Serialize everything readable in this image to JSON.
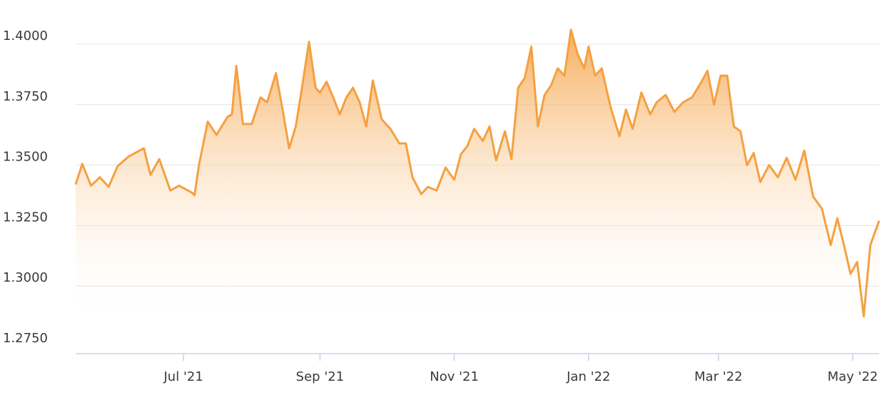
{
  "colors": {
    "line": "#f5a040",
    "fill_top": "#f5a040",
    "fill_bottom": "#ffffff",
    "grid": "#e3e3e3",
    "axis": "#c8d2e8",
    "text": "#3a3a3a"
  },
  "chart_data": {
    "type": "area",
    "title": "",
    "xlabel": "",
    "ylabel": "",
    "ylim": [
      1.275,
      1.4
    ],
    "yticks": [
      "1.2750",
      "1.3000",
      "1.3250",
      "1.3500",
      "1.3750",
      "1.4000"
    ],
    "xlim": [
      "2021-05-13",
      "2022-05-13"
    ],
    "xticks": [
      {
        "date": "2021-07-01",
        "label": "Jul '21"
      },
      {
        "date": "2021-09-01",
        "label": "Sep '21"
      },
      {
        "date": "2021-11-01",
        "label": "Nov '21"
      },
      {
        "date": "2022-01-01",
        "label": "Jan '22"
      },
      {
        "date": "2022-03-01",
        "label": "Mar '22"
      },
      {
        "date": "2022-05-01",
        "label": "May '22"
      }
    ],
    "grid": true,
    "series": [
      {
        "x": [
          "2021-05-13",
          "2021-05-16",
          "2021-05-20",
          "2021-05-24",
          "2021-05-28",
          "2021-06-01",
          "2021-06-06",
          "2021-06-10",
          "2021-06-13",
          "2021-06-16",
          "2021-06-20",
          "2021-06-25",
          "2021-06-29",
          "2021-07-05",
          "2021-07-06",
          "2021-07-08",
          "2021-07-12",
          "2021-07-16",
          "2021-07-21",
          "2021-07-23",
          "2021-07-25",
          "2021-07-28",
          "2021-08-01",
          "2021-08-05",
          "2021-08-08",
          "2021-08-12",
          "2021-08-15",
          "2021-08-18",
          "2021-08-21",
          "2021-08-24",
          "2021-08-27",
          "2021-08-30",
          "2021-09-01",
          "2021-09-04",
          "2021-09-07",
          "2021-09-10",
          "2021-09-13",
          "2021-09-16",
          "2021-09-19",
          "2021-09-22",
          "2021-09-25",
          "2021-09-29",
          "2021-10-03",
          "2021-10-07",
          "2021-10-10",
          "2021-10-13",
          "2021-10-17",
          "2021-10-20",
          "2021-10-24",
          "2021-10-28",
          "2021-11-01",
          "2021-11-04",
          "2021-11-07",
          "2021-11-10",
          "2021-11-14",
          "2021-11-17",
          "2021-11-20",
          "2021-11-24",
          "2021-11-27",
          "2021-11-30",
          "2021-12-03",
          "2021-12-06",
          "2021-12-09",
          "2021-12-12",
          "2021-12-15",
          "2021-12-18",
          "2021-12-21",
          "2021-12-24",
          "2021-12-27",
          "2021-12-30",
          "2022-01-01",
          "2022-01-04",
          "2022-01-07",
          "2022-01-11",
          "2022-01-15",
          "2022-01-18",
          "2022-01-21",
          "2022-01-25",
          "2022-01-29",
          "2022-02-01",
          "2022-02-05",
          "2022-02-09",
          "2022-02-13",
          "2022-02-17",
          "2022-02-21",
          "2022-02-24",
          "2022-02-27",
          "2022-03-02",
          "2022-03-05",
          "2022-03-08",
          "2022-03-11",
          "2022-03-14",
          "2022-03-17",
          "2022-03-20",
          "2022-03-24",
          "2022-03-28",
          "2022-04-01",
          "2022-04-05",
          "2022-04-09",
          "2022-04-13",
          "2022-04-17",
          "2022-04-21",
          "2022-04-24",
          "2022-04-27",
          "2022-04-30",
          "2022-05-03",
          "2022-05-06",
          "2022-05-09",
          "2022-05-13"
        ],
        "values": [
          1.342,
          1.3505,
          1.3415,
          1.345,
          1.341,
          1.3495,
          1.3535,
          1.3555,
          1.357,
          1.346,
          1.3525,
          1.3395,
          1.3415,
          1.3385,
          1.3375,
          1.35,
          1.368,
          1.3625,
          1.37,
          1.371,
          1.391,
          1.367,
          1.367,
          1.378,
          1.376,
          1.388,
          1.373,
          1.357,
          1.366,
          1.383,
          1.401,
          1.382,
          1.38,
          1.3845,
          1.378,
          1.371,
          1.378,
          1.382,
          1.376,
          1.366,
          1.385,
          1.369,
          1.365,
          1.359,
          1.359,
          1.345,
          1.338,
          1.341,
          1.3395,
          1.349,
          1.344,
          1.3545,
          1.358,
          1.365,
          1.36,
          1.366,
          1.352,
          1.364,
          1.3525,
          1.382,
          1.386,
          1.399,
          1.366,
          1.379,
          1.383,
          1.39,
          1.387,
          1.406,
          1.396,
          1.39,
          1.399,
          1.387,
          1.39,
          1.374,
          1.362,
          1.373,
          1.365,
          1.38,
          1.371,
          1.376,
          1.379,
          1.372,
          1.376,
          1.378,
          1.384,
          1.389,
          1.375,
          1.387,
          1.387,
          1.366,
          1.364,
          1.35,
          1.355,
          1.343,
          1.35,
          1.345,
          1.353,
          1.344,
          1.356,
          1.337,
          1.332,
          1.317,
          1.328,
          1.317,
          1.305,
          1.31,
          1.2875,
          1.317,
          1.327
        ]
      }
    ]
  }
}
